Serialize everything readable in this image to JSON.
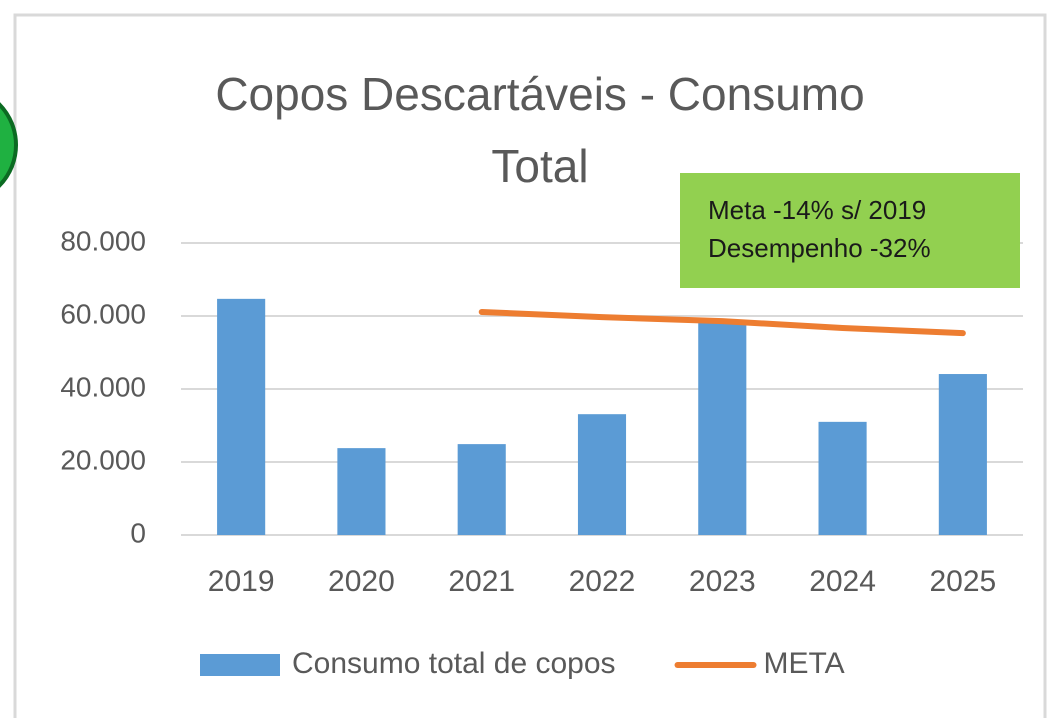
{
  "chart_data": {
    "type": "bar",
    "title": "Copos Descartáveis - Consumo Total",
    "categories": [
      "2019",
      "2020",
      "2021",
      "2022",
      "2023",
      "2024",
      "2025"
    ],
    "series": [
      {
        "name": "Consumo total de copos",
        "type": "bar",
        "color": "#5b9bd5",
        "values": [
          64700,
          23800,
          24900,
          33100,
          58900,
          31000,
          44100
        ]
      },
      {
        "name": "META",
        "type": "line",
        "color": "#ed7d31",
        "values": [
          null,
          null,
          61100,
          59700,
          58600,
          56700,
          55300
        ]
      }
    ],
    "ylim": [
      0,
      80000
    ],
    "yticks": [
      0,
      {
        "value": 20000,
        "label": "20.000"
      },
      {
        "value": 40000,
        "label": "40.000"
      },
      {
        "value": 60000,
        "label": "60.000"
      },
      {
        "value": 80000,
        "label": "80.000"
      }
    ],
    "grid": true,
    "legend": "bottom",
    "annotations": [
      "Meta -14% s/ 2019",
      "Desempenho -32%"
    ],
    "annotation_color": "#92d050"
  }
}
